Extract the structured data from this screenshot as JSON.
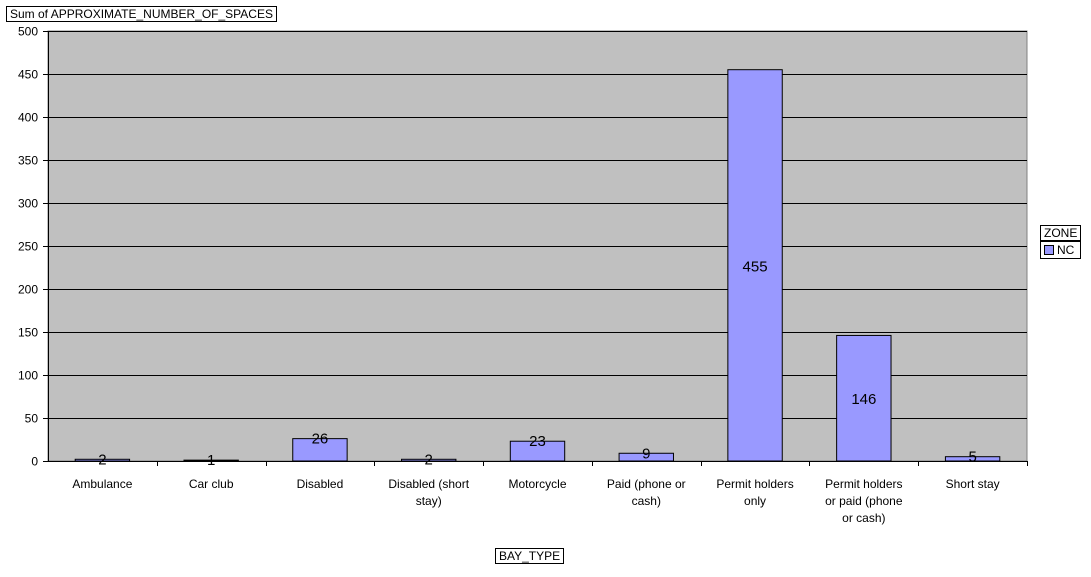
{
  "chart_data": {
    "type": "bar",
    "title": "Sum of APPROXIMATE_NUMBER_OF_SPACES",
    "xlabel": "BAY_TYPE",
    "ylabel": "",
    "categories": [
      [
        "Ambulance"
      ],
      [
        "Car club"
      ],
      [
        "Disabled"
      ],
      [
        "Disabled (short",
        "stay)"
      ],
      [
        "Motorcycle"
      ],
      [
        "Paid (phone or",
        "cash)"
      ],
      [
        "Permit holders",
        "only"
      ],
      [
        "Permit holders",
        "or paid (phone",
        "or cash)"
      ],
      [
        "Short stay"
      ]
    ],
    "series": [
      {
        "name": "NC",
        "values": [
          2,
          1,
          26,
          2,
          23,
          9,
          455,
          146,
          5
        ],
        "color": "#9999FF"
      }
    ],
    "data_labels": [
      "2",
      "1",
      "26",
      "2",
      "23",
      "9",
      "455",
      "146",
      "5"
    ],
    "ylim": [
      0,
      500
    ],
    "yticks": [
      0,
      50,
      100,
      150,
      200,
      250,
      300,
      350,
      400,
      450,
      500
    ],
    "grid": true,
    "legend": {
      "title": "ZONE",
      "placement": "right"
    },
    "plot_background": "#C0C0C0",
    "bar_edge_color": "#000000"
  }
}
